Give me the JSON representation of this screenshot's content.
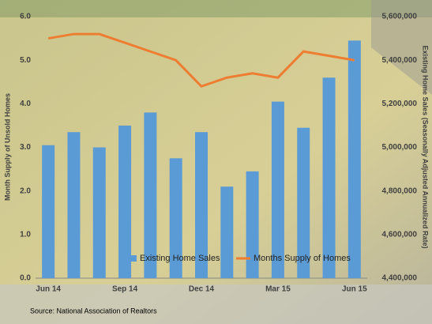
{
  "chart_data": {
    "type": "bar",
    "categories": [
      "Jun 14",
      null,
      null,
      "Sep 14",
      null,
      null,
      "Dec 14",
      null,
      null,
      "Mar 15",
      null,
      null,
      "Jun 15"
    ],
    "series": [
      {
        "name": "Existing Home Sales",
        "color": "#5b9bd5",
        "type": "bar",
        "axis": "y2",
        "values": [
          5010000,
          5070000,
          5000000,
          5100000,
          5160000,
          4950000,
          5070000,
          4820000,
          4890000,
          5210000,
          5090000,
          5320000,
          5490000
        ]
      },
      {
        "name": "Months Supply of Homes",
        "color": "#ed7d31",
        "type": "line",
        "axis": "y",
        "values": [
          5.5,
          5.6,
          5.6,
          5.4,
          5.2,
          5.0,
          4.4,
          4.6,
          4.7,
          4.6,
          5.2,
          5.1,
          5.0
        ]
      }
    ],
    "ylabel": "Month Supply of Unsold Homes",
    "y2label": "Existing Home Sales (Seasonally Adjusted Annualized Rate)",
    "ylim": [
      0,
      6
    ],
    "yticks": [
      {
        "value": 0,
        "label": "0.0"
      },
      {
        "value": 1,
        "label": "1.0"
      },
      {
        "value": 2,
        "label": "2.0"
      },
      {
        "value": 3,
        "label": "3.0"
      },
      {
        "value": 4,
        "label": "4.0"
      },
      {
        "value": 5,
        "label": "5.0"
      },
      {
        "value": 6,
        "label": "6.0"
      }
    ],
    "y2lim": [
      4400000,
      5600000
    ],
    "y2ticks": [
      {
        "value": 4400000,
        "label": "4,400,000"
      },
      {
        "value": 4600000,
        "label": "4,600,000"
      },
      {
        "value": 4800000,
        "label": "4,800,000"
      },
      {
        "value": 5000000,
        "label": "5,000,000"
      },
      {
        "value": 5200000,
        "label": "5,200,000"
      },
      {
        "value": 5400000,
        "label": "5,400,000"
      },
      {
        "value": 5600000,
        "label": "5,600,000"
      }
    ],
    "legend": "bottom",
    "source": "Source:  National Association of Realtors"
  }
}
